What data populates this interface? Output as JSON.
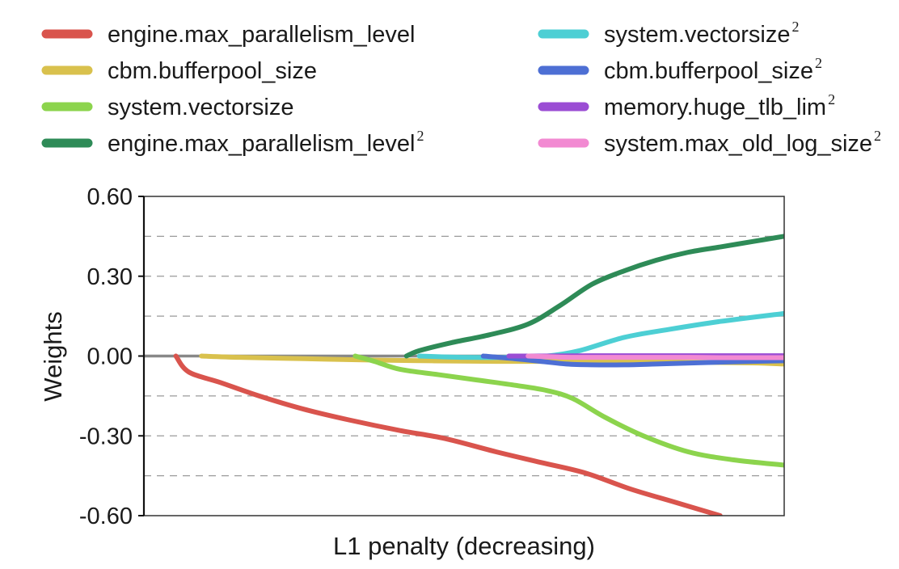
{
  "chart_data": {
    "type": "line",
    "xlabel": "L1 penalty (decreasing)",
    "ylabel": "Weights",
    "xlim": [
      0,
      100
    ],
    "ylim": [
      -0.6,
      0.6
    ],
    "yticks": [
      "0.60",
      "0.30",
      "0.00",
      "-0.30",
      "-0.60"
    ],
    "ytick_values": [
      0.6,
      0.3,
      0.0,
      -0.3,
      -0.6
    ],
    "minor_gridlines": [
      0.45,
      0.15,
      -0.15,
      -0.45
    ],
    "grid": "dashed horizontal",
    "legend_position": "top",
    "zero_line_color": "#888888",
    "series": [
      {
        "name": "engine.max_parallelism_level",
        "sup": "",
        "color": "#d9544d",
        "x": [
          5,
          7,
          12,
          18,
          25,
          32,
          40,
          47,
          55,
          62,
          69,
          76,
          83,
          90
        ],
        "y": [
          0.0,
          -0.06,
          -0.1,
          -0.15,
          -0.2,
          -0.24,
          -0.28,
          -0.31,
          -0.36,
          -0.4,
          -0.44,
          -0.5,
          -0.55,
          -0.6
        ]
      },
      {
        "name": "cbm.bufferpool_size",
        "sup": "",
        "color": "#d9c14d",
        "x": [
          9,
          15,
          25,
          35,
          45,
          55,
          65,
          75,
          85,
          95,
          100
        ],
        "y": [
          0.0,
          -0.005,
          -0.01,
          -0.015,
          -0.018,
          -0.02,
          -0.02,
          -0.021,
          -0.023,
          -0.026,
          -0.03
        ]
      },
      {
        "name": "system.vectorsize",
        "sup": "",
        "color": "#8cd44d",
        "x": [
          33,
          36,
          40,
          46,
          52,
          58,
          63,
          67,
          72,
          78,
          85,
          92,
          100
        ],
        "y": [
          0.0,
          -0.02,
          -0.05,
          -0.07,
          -0.09,
          -0.11,
          -0.13,
          -0.16,
          -0.23,
          -0.3,
          -0.36,
          -0.39,
          -0.41
        ]
      },
      {
        "name": "engine.max_parallelism_level",
        "sup": "2",
        "color": "#2e8b57",
        "x": [
          41,
          43,
          48,
          54,
          60,
          65,
          70,
          75,
          80,
          85,
          90,
          95,
          100
        ],
        "y": [
          0.0,
          0.02,
          0.05,
          0.08,
          0.12,
          0.19,
          0.27,
          0.32,
          0.36,
          0.39,
          0.41,
          0.43,
          0.45
        ]
      },
      {
        "name": "system.vectorsize",
        "sup": "2",
        "color": "#4dcfd4",
        "x": [
          43,
          50,
          58,
          63,
          68,
          75,
          82,
          90,
          100
        ],
        "y": [
          0.0,
          -0.005,
          -0.005,
          0.0,
          0.02,
          0.07,
          0.1,
          0.13,
          0.16
        ]
      },
      {
        "name": "cbm.bufferpool_size",
        "sup": "2",
        "color": "#4d6fd4",
        "x": [
          53,
          57,
          62,
          66,
          70,
          75,
          80,
          87,
          95,
          100
        ],
        "y": [
          0.0,
          -0.008,
          -0.02,
          -0.03,
          -0.033,
          -0.033,
          -0.03,
          -0.025,
          -0.02,
          -0.018
        ]
      },
      {
        "name": "memory.huge_tlb_lim",
        "sup": "2",
        "color": "#9b4dd4",
        "x": [
          57,
          62,
          70,
          80,
          90,
          100
        ],
        "y": [
          0.0,
          0.0,
          0.001,
          0.001,
          0.001,
          0.001
        ]
      },
      {
        "name": "system.max_old_log_size",
        "sup": "2",
        "color": "#f28ad2",
        "x": [
          60,
          65,
          70,
          75,
          80,
          85,
          90,
          95,
          100
        ],
        "y": [
          0.0,
          -0.004,
          -0.005,
          -0.005,
          -0.005,
          -0.005,
          -0.006,
          -0.006,
          -0.006
        ]
      }
    ]
  }
}
